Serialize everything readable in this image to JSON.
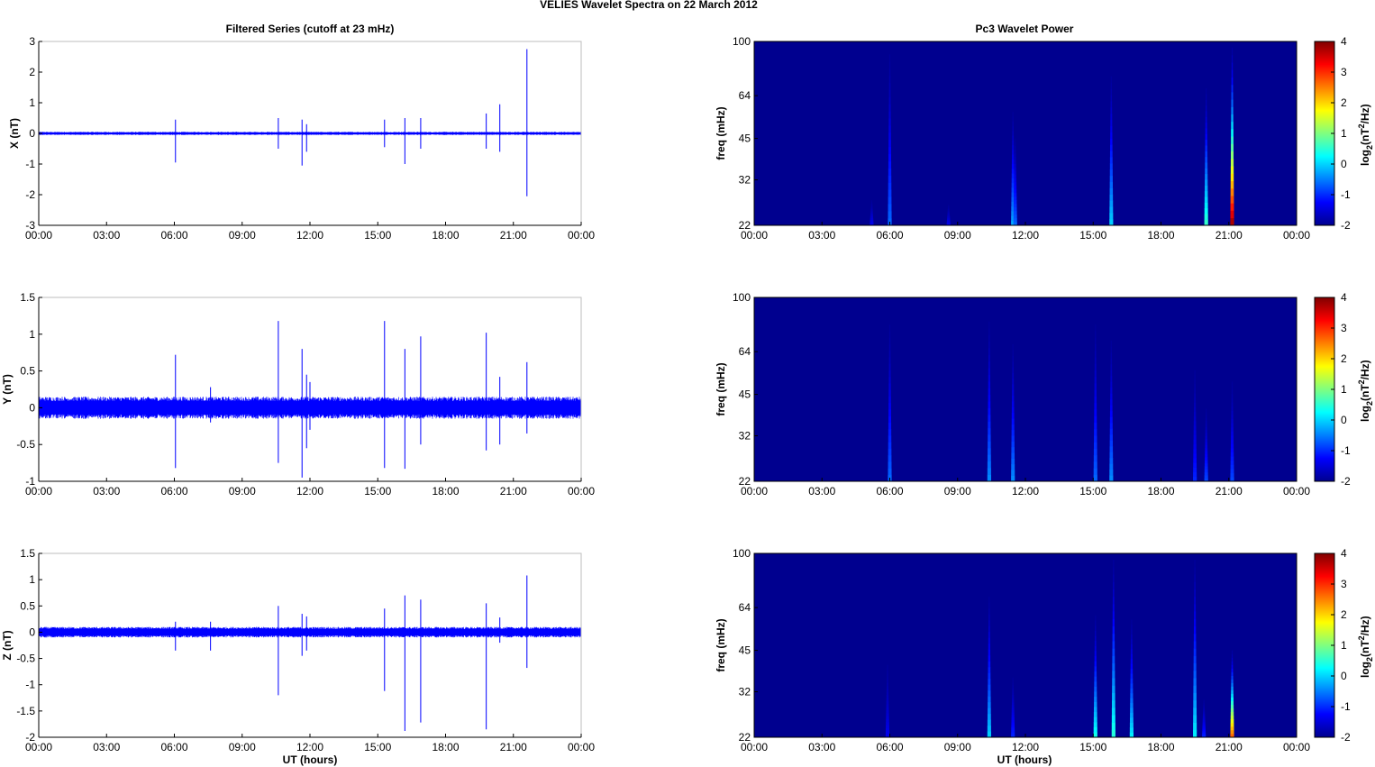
{
  "figure": {
    "suptitle": "VELIES Wavelet Spectra on 22 March      2012",
    "left_title": "Filtered Series (cutoff at 23 mHz)",
    "right_title": "Pc3 Wavelet Power"
  },
  "colors": {
    "trace": "#0000ff",
    "spec_background": "#00008f",
    "axes": "#000000",
    "box": "#bdbdbd"
  },
  "chart_data": [
    {
      "type": "line",
      "panel": "X",
      "title": "Filtered Series (cutoff at 23 mHz)",
      "xlabel": "",
      "ylabel": "X (nT)",
      "x_ticks": [
        "00:00",
        "03:00",
        "06:00",
        "09:00",
        "12:00",
        "15:00",
        "18:00",
        "21:00",
        "00:00"
      ],
      "xlim_hours": [
        0,
        24
      ],
      "ylim": [
        -3,
        3
      ],
      "y_ticks": [
        -3,
        -2,
        -1,
        0,
        1,
        2,
        3
      ],
      "noise_amplitude": 0.04,
      "spikes": [
        {
          "t": 6.05,
          "max": 0.45,
          "min": -0.95
        },
        {
          "t": 10.6,
          "max": 0.5,
          "min": -0.5
        },
        {
          "t": 11.65,
          "max": 0.45,
          "min": -1.05
        },
        {
          "t": 11.85,
          "max": 0.3,
          "min": -0.6
        },
        {
          "t": 15.3,
          "max": 0.45,
          "min": -0.45
        },
        {
          "t": 16.2,
          "max": 0.5,
          "min": -1.0
        },
        {
          "t": 16.9,
          "max": 0.5,
          "min": -0.5
        },
        {
          "t": 19.8,
          "max": 0.65,
          "min": -0.5
        },
        {
          "t": 20.4,
          "max": 0.95,
          "min": -0.6
        },
        {
          "t": 21.6,
          "max": 2.75,
          "min": -2.05
        }
      ]
    },
    {
      "type": "line",
      "panel": "Y",
      "xlabel": "",
      "ylabel": "Y (nT)",
      "x_ticks": [
        "00:00",
        "03:00",
        "06:00",
        "09:00",
        "12:00",
        "15:00",
        "18:00",
        "21:00",
        "00:00"
      ],
      "xlim_hours": [
        0,
        24
      ],
      "ylim": [
        -1,
        1.5
      ],
      "y_ticks": [
        -1,
        -0.5,
        0,
        0.5,
        1,
        1.5
      ],
      "noise_amplitude": 0.12,
      "spikes": [
        {
          "t": 6.05,
          "max": 0.72,
          "min": -0.82
        },
        {
          "t": 7.6,
          "max": 0.28,
          "min": -0.2
        },
        {
          "t": 10.6,
          "max": 1.18,
          "min": -0.75
        },
        {
          "t": 11.65,
          "max": 0.8,
          "min": -0.95
        },
        {
          "t": 11.85,
          "max": 0.45,
          "min": -0.55
        },
        {
          "t": 12.0,
          "max": 0.35,
          "min": -0.3
        },
        {
          "t": 15.3,
          "max": 1.18,
          "min": -0.82
        },
        {
          "t": 16.2,
          "max": 0.8,
          "min": -0.83
        },
        {
          "t": 16.9,
          "max": 0.97,
          "min": -0.5
        },
        {
          "t": 19.8,
          "max": 1.02,
          "min": -0.58
        },
        {
          "t": 20.4,
          "max": 0.42,
          "min": -0.5
        },
        {
          "t": 21.6,
          "max": 0.62,
          "min": -0.35
        }
      ]
    },
    {
      "type": "line",
      "panel": "Z",
      "xlabel": "UT (hours)",
      "ylabel": "Z (nT)",
      "x_ticks": [
        "00:00",
        "03:00",
        "06:00",
        "09:00",
        "12:00",
        "15:00",
        "18:00",
        "21:00",
        "00:00"
      ],
      "xlim_hours": [
        0,
        24
      ],
      "ylim": [
        -2,
        1.5
      ],
      "y_ticks": [
        -2,
        -1.5,
        -1,
        -0.5,
        0,
        0.5,
        1,
        1.5
      ],
      "noise_amplitude": 0.08,
      "spikes": [
        {
          "t": 6.05,
          "max": 0.2,
          "min": -0.35
        },
        {
          "t": 7.6,
          "max": 0.2,
          "min": -0.35
        },
        {
          "t": 10.6,
          "max": 0.5,
          "min": -1.2
        },
        {
          "t": 11.65,
          "max": 0.35,
          "min": -0.45
        },
        {
          "t": 11.85,
          "max": 0.3,
          "min": -0.35
        },
        {
          "t": 15.3,
          "max": 0.45,
          "min": -1.12
        },
        {
          "t": 16.2,
          "max": 0.7,
          "min": -1.88
        },
        {
          "t": 16.9,
          "max": 0.62,
          "min": -1.72
        },
        {
          "t": 19.8,
          "max": 0.55,
          "min": -1.85
        },
        {
          "t": 20.4,
          "max": 0.28,
          "min": -0.2
        },
        {
          "t": 21.6,
          "max": 1.08,
          "min": -0.68
        }
      ]
    },
    {
      "type": "heatmap",
      "panel": "X",
      "title": "Pc3 Wavelet Power",
      "xlabel": "",
      "ylabel": "freq (mHz)",
      "x_ticks": [
        "00:00",
        "03:00",
        "06:00",
        "09:00",
        "12:00",
        "15:00",
        "18:00",
        "21:00",
        "00:00"
      ],
      "xlim_hours": [
        0,
        24
      ],
      "y_ticks": [
        22,
        32,
        45,
        64,
        100
      ],
      "ylim_mHz": [
        22,
        100
      ],
      "y_scale": "log",
      "colorbar_label": "log2(nT^2/Hz)",
      "colorbar_ticks": [
        -2,
        -1,
        0,
        1,
        2,
        3,
        4
      ],
      "clim": [
        -2,
        4
      ],
      "events": [
        {
          "t": 5.2,
          "top_freq": 27,
          "peak": -1.5
        },
        {
          "t": 6.0,
          "top_freq": 90,
          "peak": -0.8
        },
        {
          "t": 8.6,
          "top_freq": 26,
          "peak": -1.5
        },
        {
          "t": 11.45,
          "top_freq": 56,
          "peak": -0.4
        },
        {
          "t": 11.55,
          "top_freq": 45,
          "peak": -0.8
        },
        {
          "t": 15.8,
          "top_freq": 75,
          "peak": -0.2
        },
        {
          "t": 20.0,
          "top_freq": 68,
          "peak": 0.4
        },
        {
          "t": 21.15,
          "top_freq": 95,
          "peak": 3.6
        }
      ]
    },
    {
      "type": "heatmap",
      "panel": "Y",
      "xlabel": "",
      "ylabel": "freq (mHz)",
      "x_ticks": [
        "00:00",
        "03:00",
        "06:00",
        "09:00",
        "12:00",
        "15:00",
        "18:00",
        "21:00",
        "00:00"
      ],
      "xlim_hours": [
        0,
        24
      ],
      "y_ticks": [
        22,
        32,
        45,
        64,
        100
      ],
      "ylim_mHz": [
        22,
        100
      ],
      "y_scale": "log",
      "colorbar_label": "log2(nT^2/Hz)",
      "colorbar_ticks": [
        -2,
        -1,
        0,
        1,
        2,
        3,
        4
      ],
      "clim": [
        -2,
        4
      ],
      "events": [
        {
          "t": 6.0,
          "top_freq": 80,
          "peak": -0.8
        },
        {
          "t": 10.4,
          "top_freq": 82,
          "peak": -0.6
        },
        {
          "t": 11.45,
          "top_freq": 68,
          "peak": -0.6
        },
        {
          "t": 15.1,
          "top_freq": 80,
          "peak": -0.8
        },
        {
          "t": 15.8,
          "top_freq": 70,
          "peak": -0.6
        },
        {
          "t": 19.5,
          "top_freq": 55,
          "peak": -1.2
        },
        {
          "t": 20.0,
          "top_freq": 40,
          "peak": -1.0
        },
        {
          "t": 21.15,
          "top_freq": 50,
          "peak": -1.0
        }
      ]
    },
    {
      "type": "heatmap",
      "panel": "Z",
      "xlabel": "UT (hours)",
      "ylabel": "freq (mHz)",
      "x_ticks": [
        "00:00",
        "03:00",
        "06:00",
        "09:00",
        "12:00",
        "15:00",
        "18:00",
        "21:00",
        "00:00"
      ],
      "xlim_hours": [
        0,
        24
      ],
      "y_ticks": [
        22,
        32,
        45,
        64,
        100
      ],
      "ylim_mHz": [
        22,
        100
      ],
      "y_scale": "log",
      "colorbar_label": "log2(nT^2/Hz)",
      "colorbar_ticks": [
        -2,
        -1,
        0,
        1,
        2,
        3,
        4
      ],
      "clim": [
        -2,
        4
      ],
      "events": [
        {
          "t": 5.9,
          "top_freq": 40,
          "peak": -1.5
        },
        {
          "t": 10.4,
          "top_freq": 70,
          "peak": -0.2
        },
        {
          "t": 11.45,
          "top_freq": 36,
          "peak": -1.2
        },
        {
          "t": 15.1,
          "top_freq": 60,
          "peak": 0.2
        },
        {
          "t": 15.9,
          "top_freq": 95,
          "peak": 0.3
        },
        {
          "t": 16.7,
          "top_freq": 58,
          "peak": 0.0
        },
        {
          "t": 19.5,
          "top_freq": 95,
          "peak": 0.0
        },
        {
          "t": 19.9,
          "top_freq": 30,
          "peak": -1.2
        },
        {
          "t": 21.15,
          "top_freq": 45,
          "peak": 2.5
        }
      ]
    }
  ]
}
